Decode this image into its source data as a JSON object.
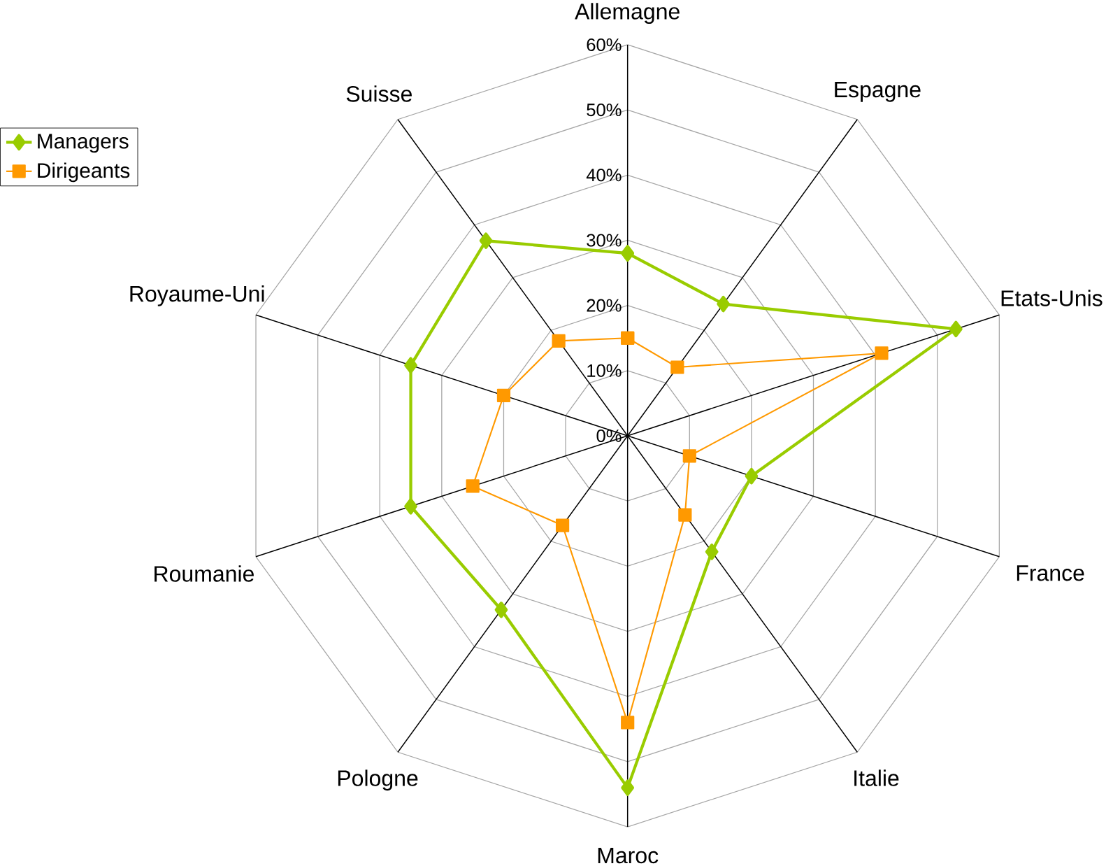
{
  "chart_data": {
    "type": "radar",
    "categories": [
      "Allemagne",
      "Espagne",
      "Etats-Unis",
      "France",
      "Italie",
      "Maroc",
      "Pologne",
      "Roumanie",
      "Royaume-Uni",
      "Suisse"
    ],
    "series": [
      {
        "name": "Managers",
        "color": "#99cc00",
        "marker": "diamond",
        "values": [
          28,
          25,
          53,
          20,
          22,
          54,
          33,
          35,
          35,
          37
        ]
      },
      {
        "name": "Dirigeants",
        "color": "#ff9900",
        "marker": "square",
        "values": [
          15,
          13,
          41,
          10,
          15,
          44,
          17,
          25,
          20,
          18
        ]
      }
    ],
    "ylim": [
      0,
      60
    ],
    "yticks": [
      {
        "value": 0,
        "label": "0%"
      },
      {
        "value": 10,
        "label": "10%"
      },
      {
        "value": 20,
        "label": "20%"
      },
      {
        "value": 30,
        "label": "30%"
      },
      {
        "value": 40,
        "label": "40%"
      },
      {
        "value": 50,
        "label": "50%"
      },
      {
        "value": 60,
        "label": "60%"
      }
    ],
    "grid": true,
    "legend": "top left"
  }
}
